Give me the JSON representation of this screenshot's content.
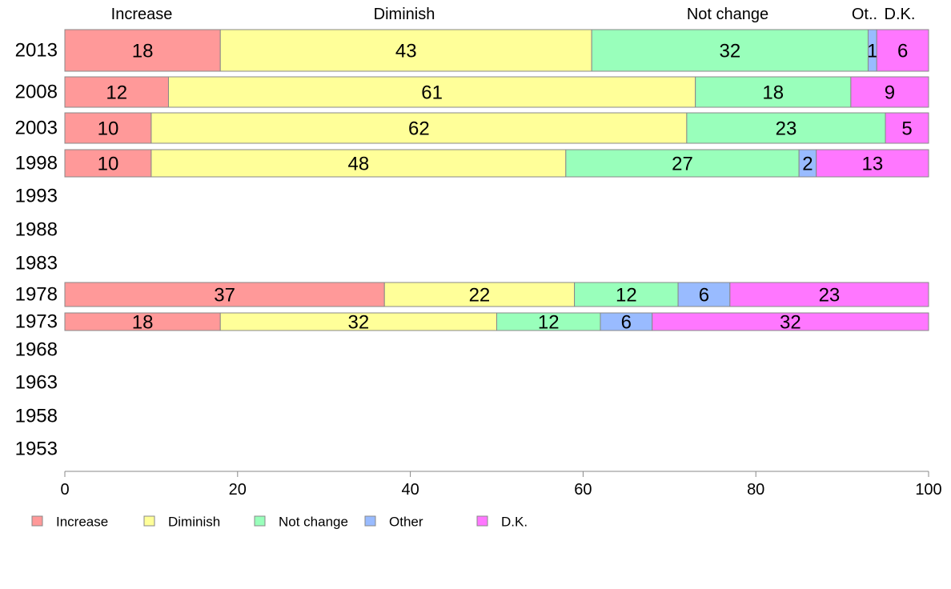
{
  "chart_data": {
    "type": "bar",
    "orientation": "horizontal",
    "stacked": true,
    "categories": [
      "2013",
      "2008",
      "2003",
      "1998",
      "1993",
      "1988",
      "1983",
      "1978",
      "1973",
      "1968",
      "1963",
      "1958",
      "1953"
    ],
    "series": [
      {
        "name": "Increase",
        "color": "#ff9999",
        "values": [
          18,
          12,
          10,
          10,
          null,
          null,
          null,
          37,
          18,
          null,
          null,
          null,
          null
        ]
      },
      {
        "name": "Diminish",
        "color": "#ffff99",
        "values": [
          43,
          61,
          62,
          48,
          null,
          null,
          null,
          22,
          32,
          null,
          null,
          null,
          null
        ]
      },
      {
        "name": "Not change",
        "color": "#99ffbb",
        "values": [
          32,
          18,
          23,
          27,
          null,
          null,
          null,
          12,
          12,
          null,
          null,
          null,
          null
        ]
      },
      {
        "name": "Other",
        "color": "#99bbff",
        "values": [
          1,
          0,
          0,
          2,
          null,
          null,
          null,
          6,
          6,
          null,
          null,
          null,
          null
        ]
      },
      {
        "name": "D.K.",
        "color": "#ff77ff",
        "values": [
          6,
          9,
          5,
          13,
          null,
          null,
          null,
          23,
          32,
          null,
          null,
          null,
          null
        ]
      }
    ],
    "top_labels": [
      "Increase",
      "Diminish",
      "Not change",
      "Ot..",
      "D.K."
    ],
    "xlim": [
      0,
      100
    ],
    "xticks": [
      0,
      20,
      40,
      60,
      80,
      100
    ],
    "grid": false,
    "legend_position": "bottom-left",
    "title": "",
    "xlabel": "",
    "ylabel": ""
  }
}
